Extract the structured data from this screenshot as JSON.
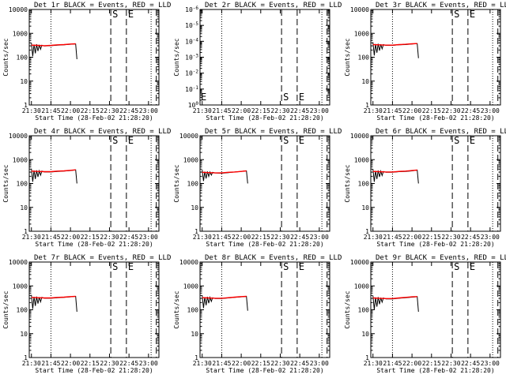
{
  "chart_data": [
    {
      "type": "line",
      "title": "Det 1r BLACK = Events, RED = LLD",
      "ylabel": "Counts/sec",
      "xlabel": "Start Time (28-Feb-02 21:28:20)",
      "xticks": [
        "21:30",
        "21:45",
        "22:00",
        "22:15",
        "22:30",
        "22:45",
        "23:00"
      ],
      "yscale": "log",
      "ylim": [
        1,
        12000
      ],
      "yticks": [
        "1",
        "10",
        "100",
        "1000",
        "10000"
      ],
      "markers": [
        {
          "label": "S"
        },
        {
          "label": "E"
        }
      ],
      "series": [
        {
          "color": "#000000",
          "x": [
            "21:30",
            "21:31",
            "21:32",
            "21:33",
            "21:34",
            "21:35",
            "21:36",
            "21:37",
            "21:38",
            "21:40",
            "21:45",
            "21:50",
            "21:55",
            "22:00",
            "22:03",
            "22:04",
            "22:05"
          ],
          "values": [
            450,
            120,
            380,
            160,
            390,
            200,
            370,
            240,
            360,
            330,
            340,
            360,
            370,
            390,
            400,
            400,
            90
          ]
        },
        {
          "color": "#ff0000",
          "x": [
            "21:30",
            "21:35",
            "21:40",
            "21:45",
            "21:50",
            "21:55",
            "22:00",
            "22:04"
          ],
          "values": [
            360,
            350,
            340,
            350,
            370,
            380,
            400,
            410
          ]
        }
      ]
    },
    {
      "type": "line",
      "title": "Det 2r BLACK = Events, RED = LLD",
      "ylabel": "Counts/sec",
      "xlabel": "Start Time (28-Feb-02 21:28:20)",
      "xticks": [
        "21:30",
        "21:45",
        "22:00",
        "22:15",
        "22:30",
        "22:45",
        "23:00"
      ],
      "yscale": "log",
      "ylim": [
        1,
        1e-06
      ],
      "yticks": [
        "10^0",
        "10^-1",
        "10^-2",
        "10^-3",
        "10^-4",
        "10^-5",
        "10^-6"
      ],
      "markers": [
        {
          "label": "S"
        },
        {
          "label": "E"
        }
      ],
      "series": []
    },
    {
      "type": "line",
      "title": "Det 3r BLACK = Events, RED = LLD",
      "ylabel": "Counts/sec",
      "xlabel": "Start Time (28-Feb-02 21:28:20)",
      "xticks": [
        "21:30",
        "21:45",
        "22:00",
        "22:15",
        "22:30",
        "22:45",
        "23:00"
      ],
      "yscale": "log",
      "ylim": [
        1,
        12000
      ],
      "yticks": [
        "1",
        "10",
        "100",
        "1000",
        "10000"
      ],
      "markers": [
        {
          "label": "S"
        },
        {
          "label": "E"
        }
      ],
      "series": [
        {
          "color": "#000000",
          "x": [
            "21:30",
            "21:31",
            "21:32",
            "21:33",
            "21:34",
            "21:35",
            "21:36",
            "21:37",
            "21:38",
            "21:40",
            "21:45",
            "21:50",
            "21:55",
            "22:00",
            "22:03",
            "22:04",
            "22:05"
          ],
          "values": [
            480,
            130,
            400,
            170,
            410,
            210,
            390,
            250,
            380,
            350,
            350,
            370,
            380,
            400,
            420,
            420,
            100
          ]
        },
        {
          "color": "#ff0000",
          "x": [
            "21:30",
            "21:35",
            "21:40",
            "21:45",
            "21:50",
            "21:55",
            "22:00",
            "22:04"
          ],
          "values": [
            380,
            370,
            360,
            360,
            380,
            390,
            410,
            420
          ]
        }
      ]
    },
    {
      "type": "line",
      "title": "Det 4r BLACK = Events, RED = LLD",
      "ylabel": "Counts/sec",
      "xlabel": "Start Time (28-Feb-02 21:28:20)",
      "xticks": [
        "21:30",
        "21:45",
        "22:00",
        "22:15",
        "22:30",
        "22:45",
        "23:00"
      ],
      "yscale": "log",
      "ylim": [
        1,
        12000
      ],
      "yticks": [
        "1",
        "10",
        "100",
        "1000",
        "10000"
      ],
      "markers": [
        {
          "label": "S"
        },
        {
          "label": "E"
        }
      ],
      "series": [
        {
          "color": "#000000",
          "x": [
            "21:30",
            "21:31",
            "21:32",
            "21:33",
            "21:34",
            "21:35",
            "21:36",
            "21:37",
            "21:38",
            "21:40",
            "21:45",
            "21:50",
            "21:55",
            "22:00",
            "22:03",
            "22:04",
            "22:05"
          ],
          "values": [
            470,
            130,
            390,
            170,
            400,
            210,
            380,
            250,
            370,
            340,
            340,
            360,
            370,
            390,
            410,
            420,
            110
          ]
        },
        {
          "color": "#ff0000",
          "x": [
            "21:30",
            "21:35",
            "21:40",
            "21:45",
            "21:50",
            "21:55",
            "22:00",
            "22:04"
          ],
          "values": [
            370,
            360,
            350,
            350,
            370,
            380,
            400,
            420
          ]
        }
      ]
    },
    {
      "type": "line",
      "title": "Det 5r BLACK = Events, RED = LLD",
      "ylabel": "Counts/sec",
      "xlabel": "Start Time (28-Feb-02 21:28:20)",
      "xticks": [
        "21:30",
        "21:45",
        "22:00",
        "22:15",
        "22:30",
        "22:45",
        "23:00"
      ],
      "yscale": "log",
      "ylim": [
        1,
        12000
      ],
      "yticks": [
        "1",
        "10",
        "100",
        "1000",
        "10000"
      ],
      "markers": [
        {
          "label": "S"
        },
        {
          "label": "E"
        }
      ],
      "series": [
        {
          "color": "#000000",
          "x": [
            "21:30",
            "21:31",
            "21:32",
            "21:33",
            "21:34",
            "21:35",
            "21:36",
            "21:37",
            "21:38",
            "21:40",
            "21:45",
            "21:50",
            "21:55",
            "22:00",
            "22:03",
            "22:04",
            "22:05"
          ],
          "values": [
            420,
            140,
            350,
            180,
            360,
            220,
            340,
            250,
            330,
            310,
            300,
            320,
            340,
            360,
            380,
            380,
            110
          ]
        },
        {
          "color": "#ff0000",
          "x": [
            "21:30",
            "21:35",
            "21:40",
            "21:45",
            "21:50",
            "21:55",
            "22:00",
            "22:04"
          ],
          "values": [
            330,
            320,
            310,
            310,
            330,
            340,
            360,
            380
          ]
        }
      ]
    },
    {
      "type": "line",
      "title": "Det 6r BLACK = Events, RED = LLD",
      "ylabel": "Counts/sec",
      "xlabel": "Start Time (28-Feb-02 21:28:20)",
      "xticks": [
        "21:30",
        "21:45",
        "22:00",
        "22:15",
        "22:30",
        "22:45",
        "23:00"
      ],
      "yscale": "log",
      "ylim": [
        1,
        12000
      ],
      "yticks": [
        "1",
        "10",
        "100",
        "1000",
        "10000"
      ],
      "markers": [
        {
          "label": "S"
        },
        {
          "label": "E"
        }
      ],
      "series": [
        {
          "color": "#000000",
          "x": [
            "21:30",
            "21:31",
            "21:32",
            "21:33",
            "21:34",
            "21:35",
            "21:36",
            "21:37",
            "21:38",
            "21:40",
            "21:45",
            "21:50",
            "21:55",
            "22:00",
            "22:03",
            "22:04",
            "22:05"
          ],
          "values": [
            460,
            130,
            380,
            170,
            390,
            210,
            370,
            240,
            360,
            330,
            330,
            350,
            360,
            380,
            400,
            410,
            110
          ]
        },
        {
          "color": "#ff0000",
          "x": [
            "21:30",
            "21:35",
            "21:40",
            "21:45",
            "21:50",
            "21:55",
            "22:00",
            "22:04"
          ],
          "values": [
            360,
            350,
            340,
            340,
            360,
            370,
            390,
            410
          ]
        }
      ]
    },
    {
      "type": "line",
      "title": "Det 7r BLACK = Events, RED = LLD",
      "ylabel": "Counts/sec",
      "xlabel": "Start Time (28-Feb-02 21:28:20)",
      "xticks": [
        "21:30",
        "21:45",
        "22:00",
        "22:15",
        "22:30",
        "22:45",
        "23:00"
      ],
      "yscale": "log",
      "ylim": [
        1,
        12000
      ],
      "yticks": [
        "1",
        "10",
        "100",
        "1000",
        "10000"
      ],
      "markers": [
        {
          "label": "S"
        },
        {
          "label": "E"
        }
      ],
      "series": [
        {
          "color": "#000000",
          "x": [
            "21:30",
            "21:31",
            "21:32",
            "21:33",
            "21:34",
            "21:35",
            "21:36",
            "21:37",
            "21:38",
            "21:40",
            "21:45",
            "21:50",
            "21:55",
            "22:00",
            "22:03",
            "22:04",
            "22:05"
          ],
          "values": [
            470,
            120,
            390,
            160,
            400,
            200,
            380,
            240,
            370,
            340,
            340,
            360,
            370,
            390,
            410,
            410,
            90
          ]
        },
        {
          "color": "#ff0000",
          "x": [
            "21:30",
            "21:35",
            "21:40",
            "21:45",
            "21:50",
            "21:55",
            "22:00",
            "22:04"
          ],
          "values": [
            370,
            360,
            350,
            350,
            370,
            380,
            400,
            410
          ]
        }
      ]
    },
    {
      "type": "line",
      "title": "Det 8r BLACK = Events, RED = LLD",
      "ylabel": "Counts/sec",
      "xlabel": "Start Time (28-Feb-02 21:28:20)",
      "xticks": [
        "21:30",
        "21:45",
        "22:00",
        "22:15",
        "22:30",
        "22:45",
        "23:00"
      ],
      "yscale": "log",
      "ylim": [
        1,
        12000
      ],
      "yticks": [
        "1",
        "10",
        "100",
        "1000",
        "10000"
      ],
      "markers": [
        {
          "label": "S"
        },
        {
          "label": "E"
        }
      ],
      "series": [
        {
          "color": "#000000",
          "x": [
            "21:30",
            "21:31",
            "21:32",
            "21:33",
            "21:34",
            "21:35",
            "21:36",
            "21:37",
            "21:38",
            "21:40",
            "21:45",
            "21:50",
            "21:55",
            "22:00",
            "22:03",
            "22:04",
            "22:05"
          ],
          "values": [
            460,
            130,
            380,
            170,
            390,
            210,
            370,
            250,
            360,
            330,
            330,
            350,
            370,
            390,
            400,
            410,
            100
          ]
        },
        {
          "color": "#ff0000",
          "x": [
            "21:30",
            "21:35",
            "21:40",
            "21:45",
            "21:50",
            "21:55",
            "22:00",
            "22:04"
          ],
          "values": [
            360,
            350,
            340,
            340,
            360,
            380,
            400,
            410
          ]
        }
      ]
    },
    {
      "type": "line",
      "title": "Det 9r BLACK = Events, RED = LLD",
      "ylabel": "Counts/sec",
      "xlabel": "Start Time (28-Feb-02 21:28:20)",
      "xticks": [
        "21:30",
        "21:45",
        "22:00",
        "22:15",
        "22:30",
        "22:45",
        "23:00"
      ],
      "yscale": "log",
      "ylim": [
        1,
        12000
      ],
      "yticks": [
        "1",
        "10",
        "100",
        "1000",
        "10000"
      ],
      "markers": [
        {
          "label": "S"
        },
        {
          "label": "E"
        }
      ],
      "series": [
        {
          "color": "#000000",
          "x": [
            "21:30",
            "21:31",
            "21:32",
            "21:33",
            "21:34",
            "21:35",
            "21:36",
            "21:37",
            "21:38",
            "21:40",
            "21:45",
            "21:50",
            "21:55",
            "22:00",
            "22:03",
            "22:04",
            "22:05"
          ],
          "values": [
            440,
            110,
            370,
            150,
            380,
            190,
            360,
            230,
            350,
            320,
            320,
            340,
            360,
            380,
            390,
            400,
            90
          ]
        },
        {
          "color": "#ff0000",
          "x": [
            "21:30",
            "21:35",
            "21:40",
            "21:45",
            "21:50",
            "21:55",
            "22:00",
            "22:04"
          ],
          "values": [
            350,
            340,
            330,
            330,
            350,
            370,
            390,
            400
          ]
        }
      ]
    }
  ]
}
